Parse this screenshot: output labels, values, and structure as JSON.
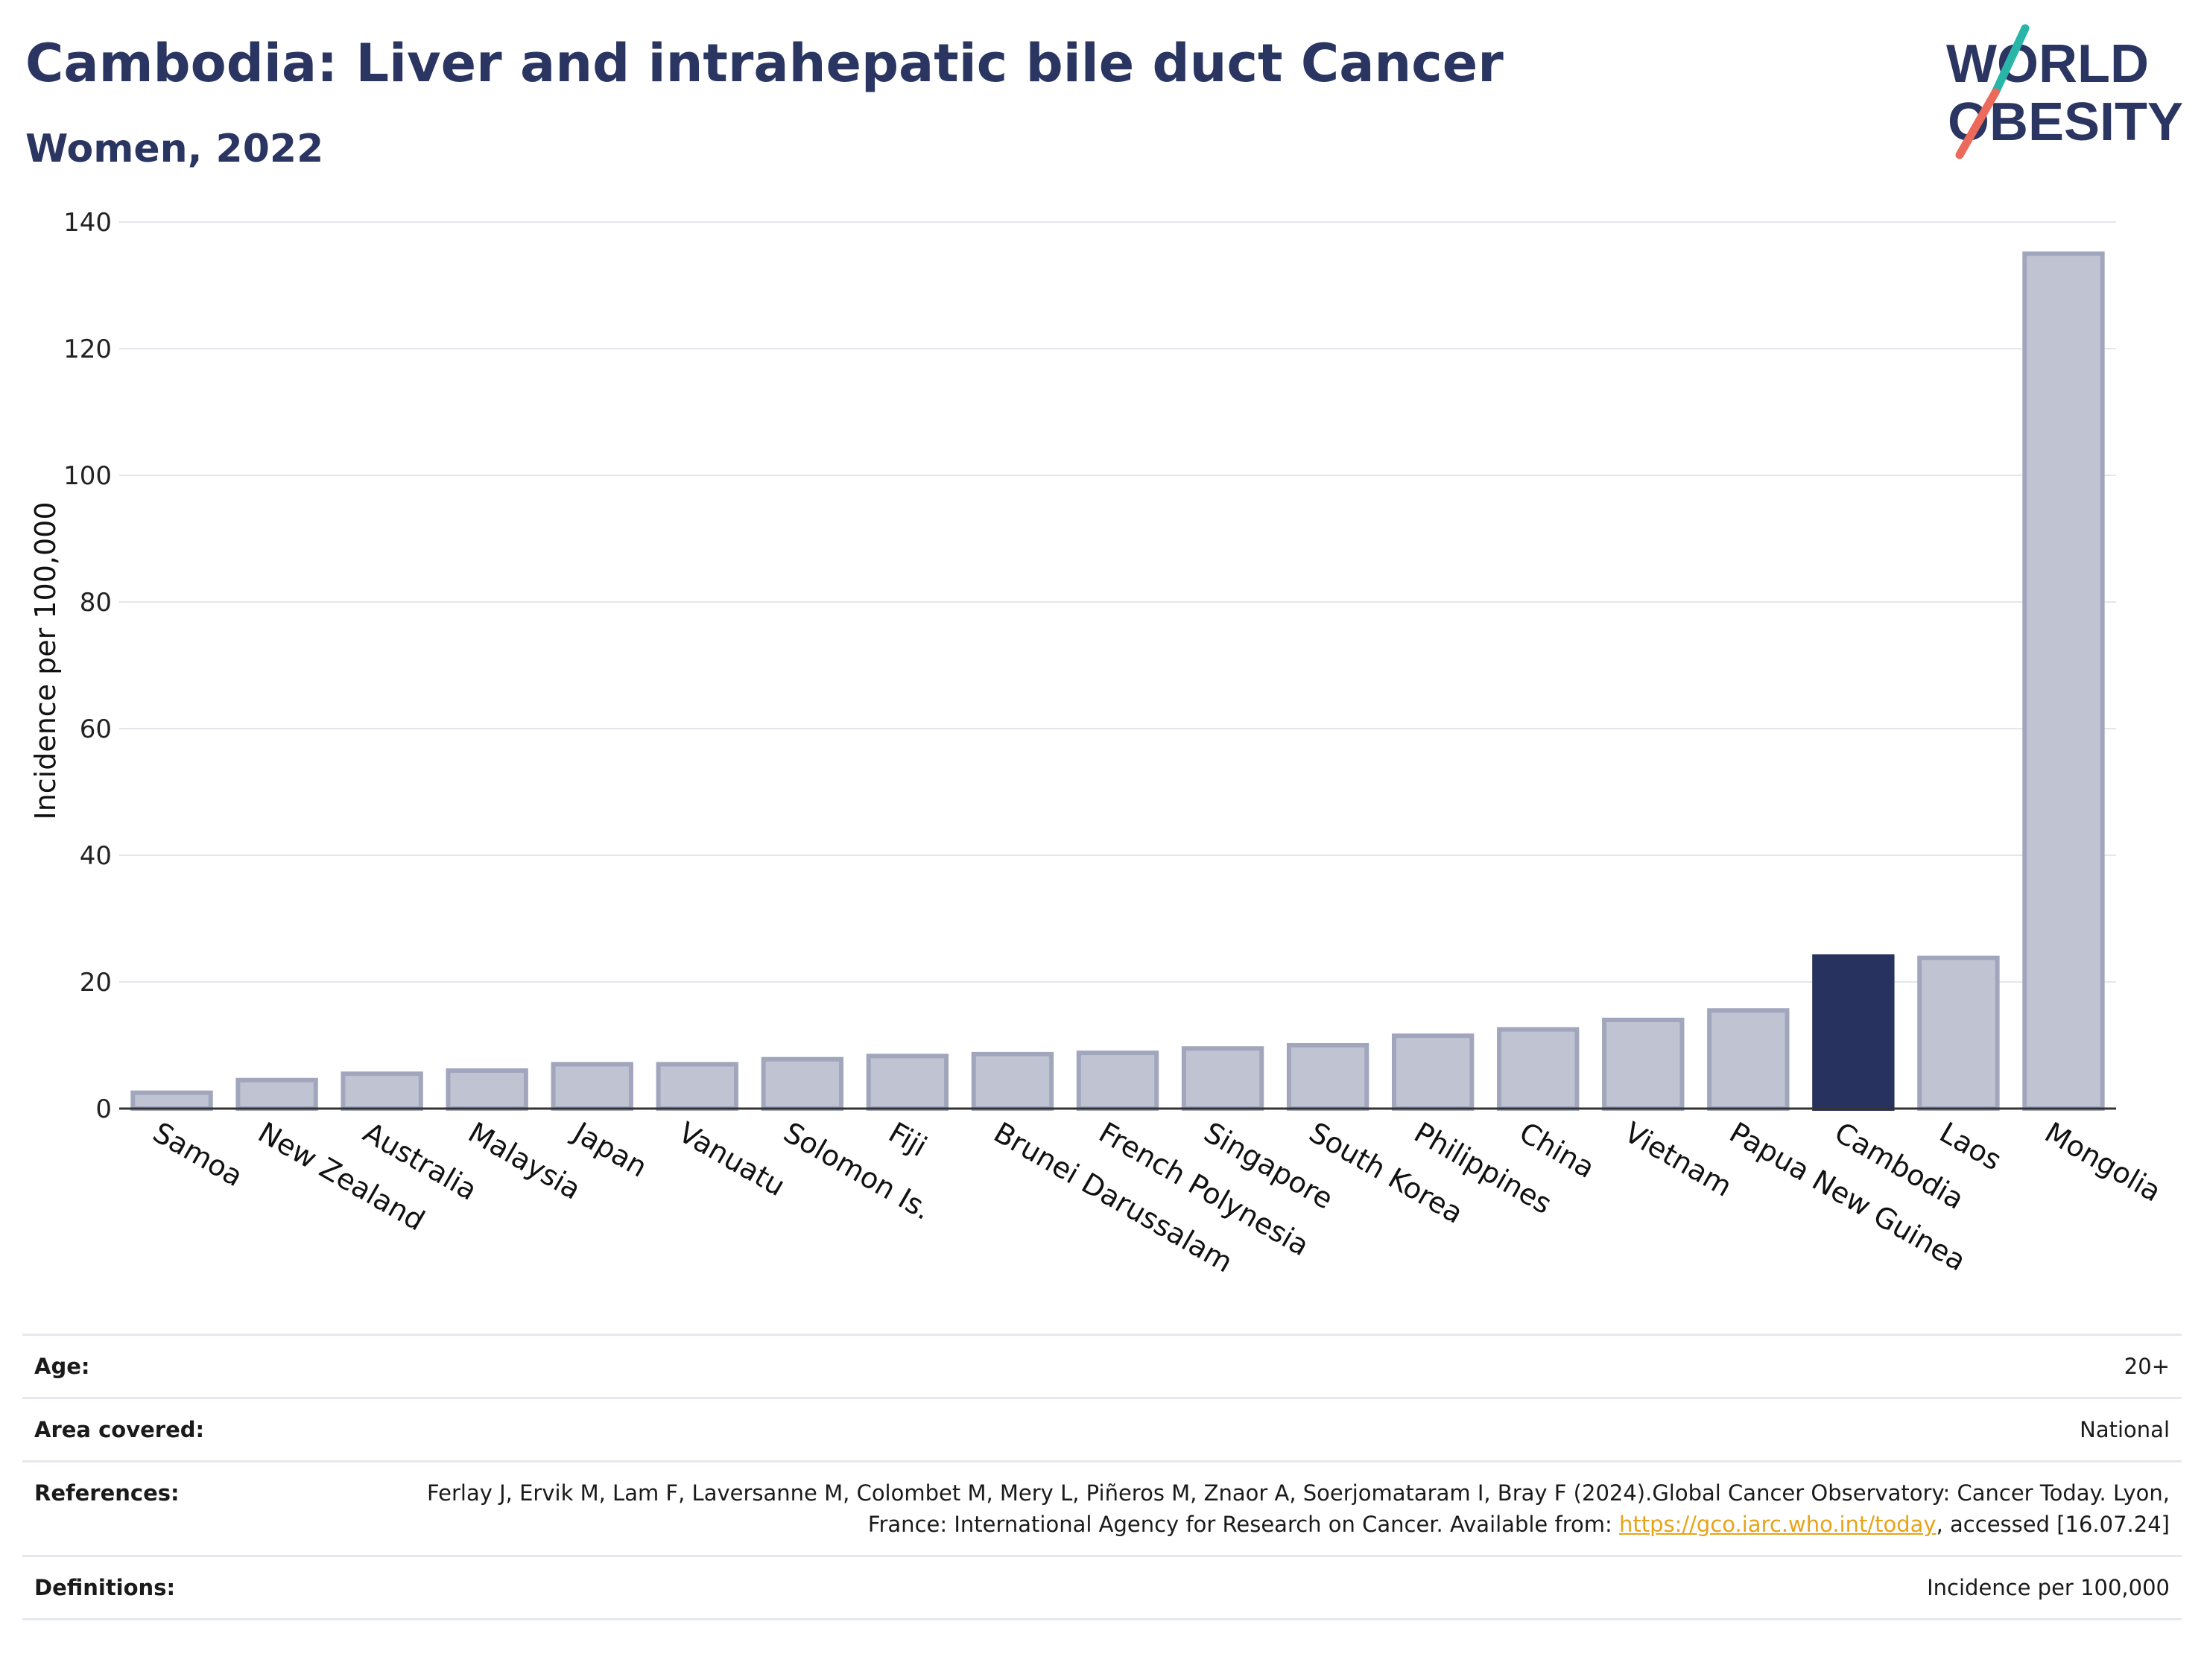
{
  "header": {
    "title": "Cambodia: Liver and intrahepatic bile duct Cancer",
    "subtitle": "Women, 2022"
  },
  "logo": {
    "line1": "WORLD",
    "line2": "OBESITY"
  },
  "colors": {
    "highlight": "#27325f",
    "bar": "#c0c4d2",
    "bar_edge": "#a1a6bd",
    "title": "#2a3561",
    "link": "#e8a317"
  },
  "chart_data": {
    "type": "bar",
    "ylabel": "Incidence per 100,000",
    "xlabel": "",
    "ylim": [
      0,
      140
    ],
    "yticks": [
      0,
      20,
      40,
      60,
      80,
      100,
      120,
      140
    ],
    "grid": true,
    "categories": [
      "Samoa",
      "New Zealand",
      "Australia",
      "Malaysia",
      "Japan",
      "Vanuatu",
      "Solomon Is.",
      "Fiji",
      "Brunei Darussalam",
      "French Polynesia",
      "Singapore",
      "South Korea",
      "Philippines",
      "China",
      "Vietnam",
      "Papua New Guinea",
      "Cambodia",
      "Laos",
      "Mongolia"
    ],
    "values": [
      2.5,
      4.5,
      5.5,
      6.0,
      7.0,
      7.0,
      7.8,
      8.3,
      8.6,
      8.8,
      9.5,
      10.0,
      11.5,
      12.5,
      14.0,
      15.5,
      24.0,
      23.8,
      135.0
    ],
    "highlight": "Cambodia"
  },
  "info": {
    "age": {
      "label": "Age:",
      "value": "20+"
    },
    "area": {
      "label": "Area covered:",
      "value": "National"
    },
    "references": {
      "label": "References:",
      "text_before": "Ferlay J, Ervik M, Lam F, Laversanne M, Colombet M, Mery L, Piñeros M, Znaor A, Soerjomataram I, Bray F (2024).Global Cancer Observatory: Cancer Today. Lyon, France: International Agency for Research on Cancer. Available from: ",
      "link": "https://gco.iarc.who.int/today",
      "text_after": ", accessed [16.07.24]"
    },
    "definitions": {
      "label": "Definitions:",
      "value": "Incidence per 100,000"
    }
  }
}
